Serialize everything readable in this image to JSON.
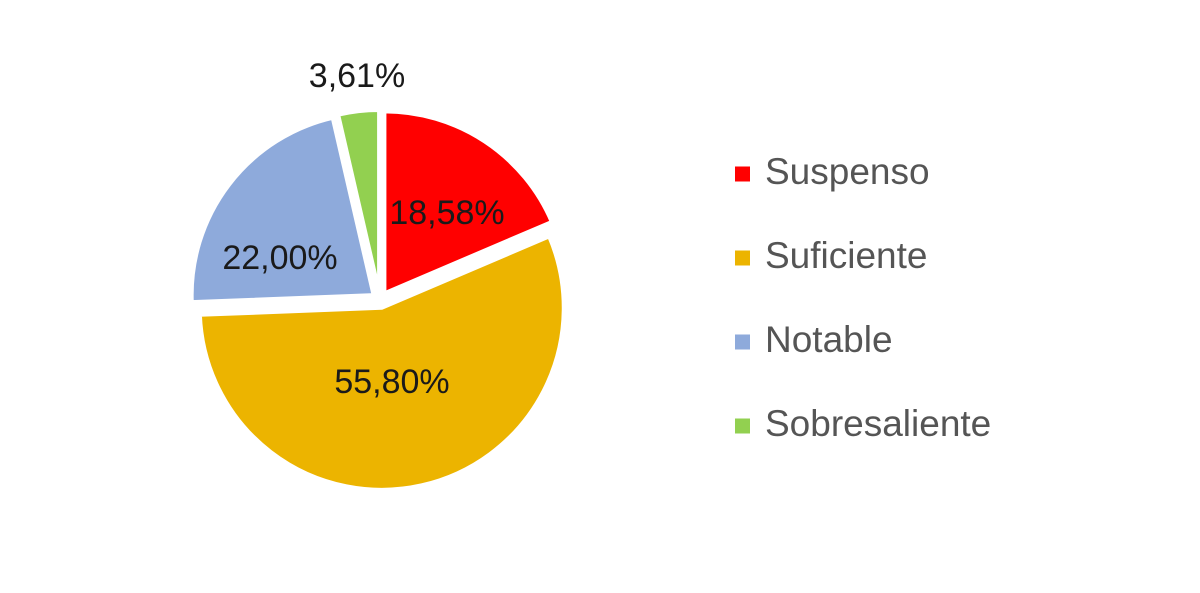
{
  "chart_data": {
    "type": "pie",
    "title": "",
    "slices": [
      {
        "label": "Suspenso",
        "value": 18.58,
        "value_label": "18,58%",
        "color": "#ff0000"
      },
      {
        "label": "Suficiente",
        "value": 55.8,
        "value_label": "55,80%",
        "color": "#ecb400"
      },
      {
        "label": "Notable",
        "value": 22.0,
        "value_label": "22,00%",
        "color": "#8eaadb"
      },
      {
        "label": "Sobresaliente",
        "value": 3.61,
        "value_label": "3,61%",
        "color": "#92d050"
      }
    ],
    "exploded": true,
    "start_angle": "12 o'clock",
    "direction": "clockwise",
    "legend": {
      "position": "right"
    }
  }
}
